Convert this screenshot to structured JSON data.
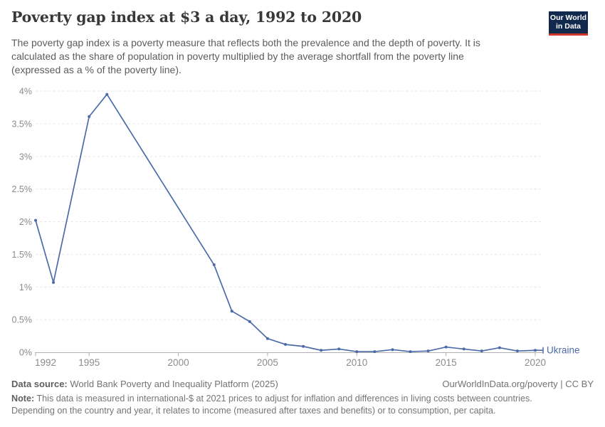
{
  "header": {
    "title": "Poverty gap index at $3 a day, 1992 to 2020",
    "subtitle": "The poverty gap index is a poverty measure that reflects both the prevalence and the depth of poverty. It is\ncalculated as the share of population in poverty multiplied by the average shortfall from the poverty line\n(expressed as a % of the poverty line).",
    "logo": {
      "line1": "Our World",
      "line2": "in Data",
      "bg_color": "#12294E",
      "accent_color": "#D0352C"
    }
  },
  "chart_data": {
    "type": "line",
    "title": "Poverty gap index at $3 a day, 1992 to 2020",
    "entity_label": "Ukraine",
    "line_color": "#4C6BA8",
    "grid_color": "#E6E6E6",
    "axis_color": "#B0B0B0",
    "tick_label_color": "#8B8B8B",
    "xlim": [
      1992,
      2020
    ],
    "ylim": [
      0,
      4
    ],
    "grid": "horizontal-dashed",
    "x_ticks": [
      1992,
      1995,
      2000,
      2005,
      2010,
      2015,
      2020
    ],
    "y_ticks": [
      {
        "value": 0,
        "label": "0%"
      },
      {
        "value": 0.5,
        "label": "0.5%"
      },
      {
        "value": 1,
        "label": "1%"
      },
      {
        "value": 1.5,
        "label": "1.5%"
      },
      {
        "value": 2,
        "label": "2%"
      },
      {
        "value": 2.5,
        "label": "2.5%"
      },
      {
        "value": 3,
        "label": "3%"
      },
      {
        "value": 3.5,
        "label": "3.5%"
      },
      {
        "value": 4,
        "label": "4%"
      }
    ],
    "series": [
      {
        "name": "Ukraine",
        "points": [
          [
            1992,
            2.02
          ],
          [
            1993,
            1.07
          ],
          [
            1995,
            3.61
          ],
          [
            1996,
            3.95
          ],
          [
            2002,
            1.34
          ],
          [
            2003,
            0.63
          ],
          [
            2004,
            0.47
          ],
          [
            2005,
            0.21
          ],
          [
            2006,
            0.12
          ],
          [
            2007,
            0.09
          ],
          [
            2008,
            0.03
          ],
          [
            2009,
            0.05
          ],
          [
            2010,
            0.01
          ],
          [
            2011,
            0.01
          ],
          [
            2012,
            0.04
          ],
          [
            2013,
            0.01
          ],
          [
            2014,
            0.02
          ],
          [
            2015,
            0.08
          ],
          [
            2016,
            0.05
          ],
          [
            2017,
            0.02
          ],
          [
            2018,
            0.07
          ],
          [
            2019,
            0.02
          ],
          [
            2020,
            0.03
          ]
        ]
      }
    ]
  },
  "footer": {
    "data_source_label": "Data source:",
    "data_source": "World Bank Poverty and Inequality Platform (2025)",
    "credit": "OurWorldInData.org/poverty | CC BY",
    "note_label": "Note:",
    "note": "This data is measured in international-$ at 2021 prices to adjust for inflation and differences in living costs between countries.\nDepending on the country and year, it relates to income (measured after taxes and benefits) or to consumption, per capita."
  }
}
